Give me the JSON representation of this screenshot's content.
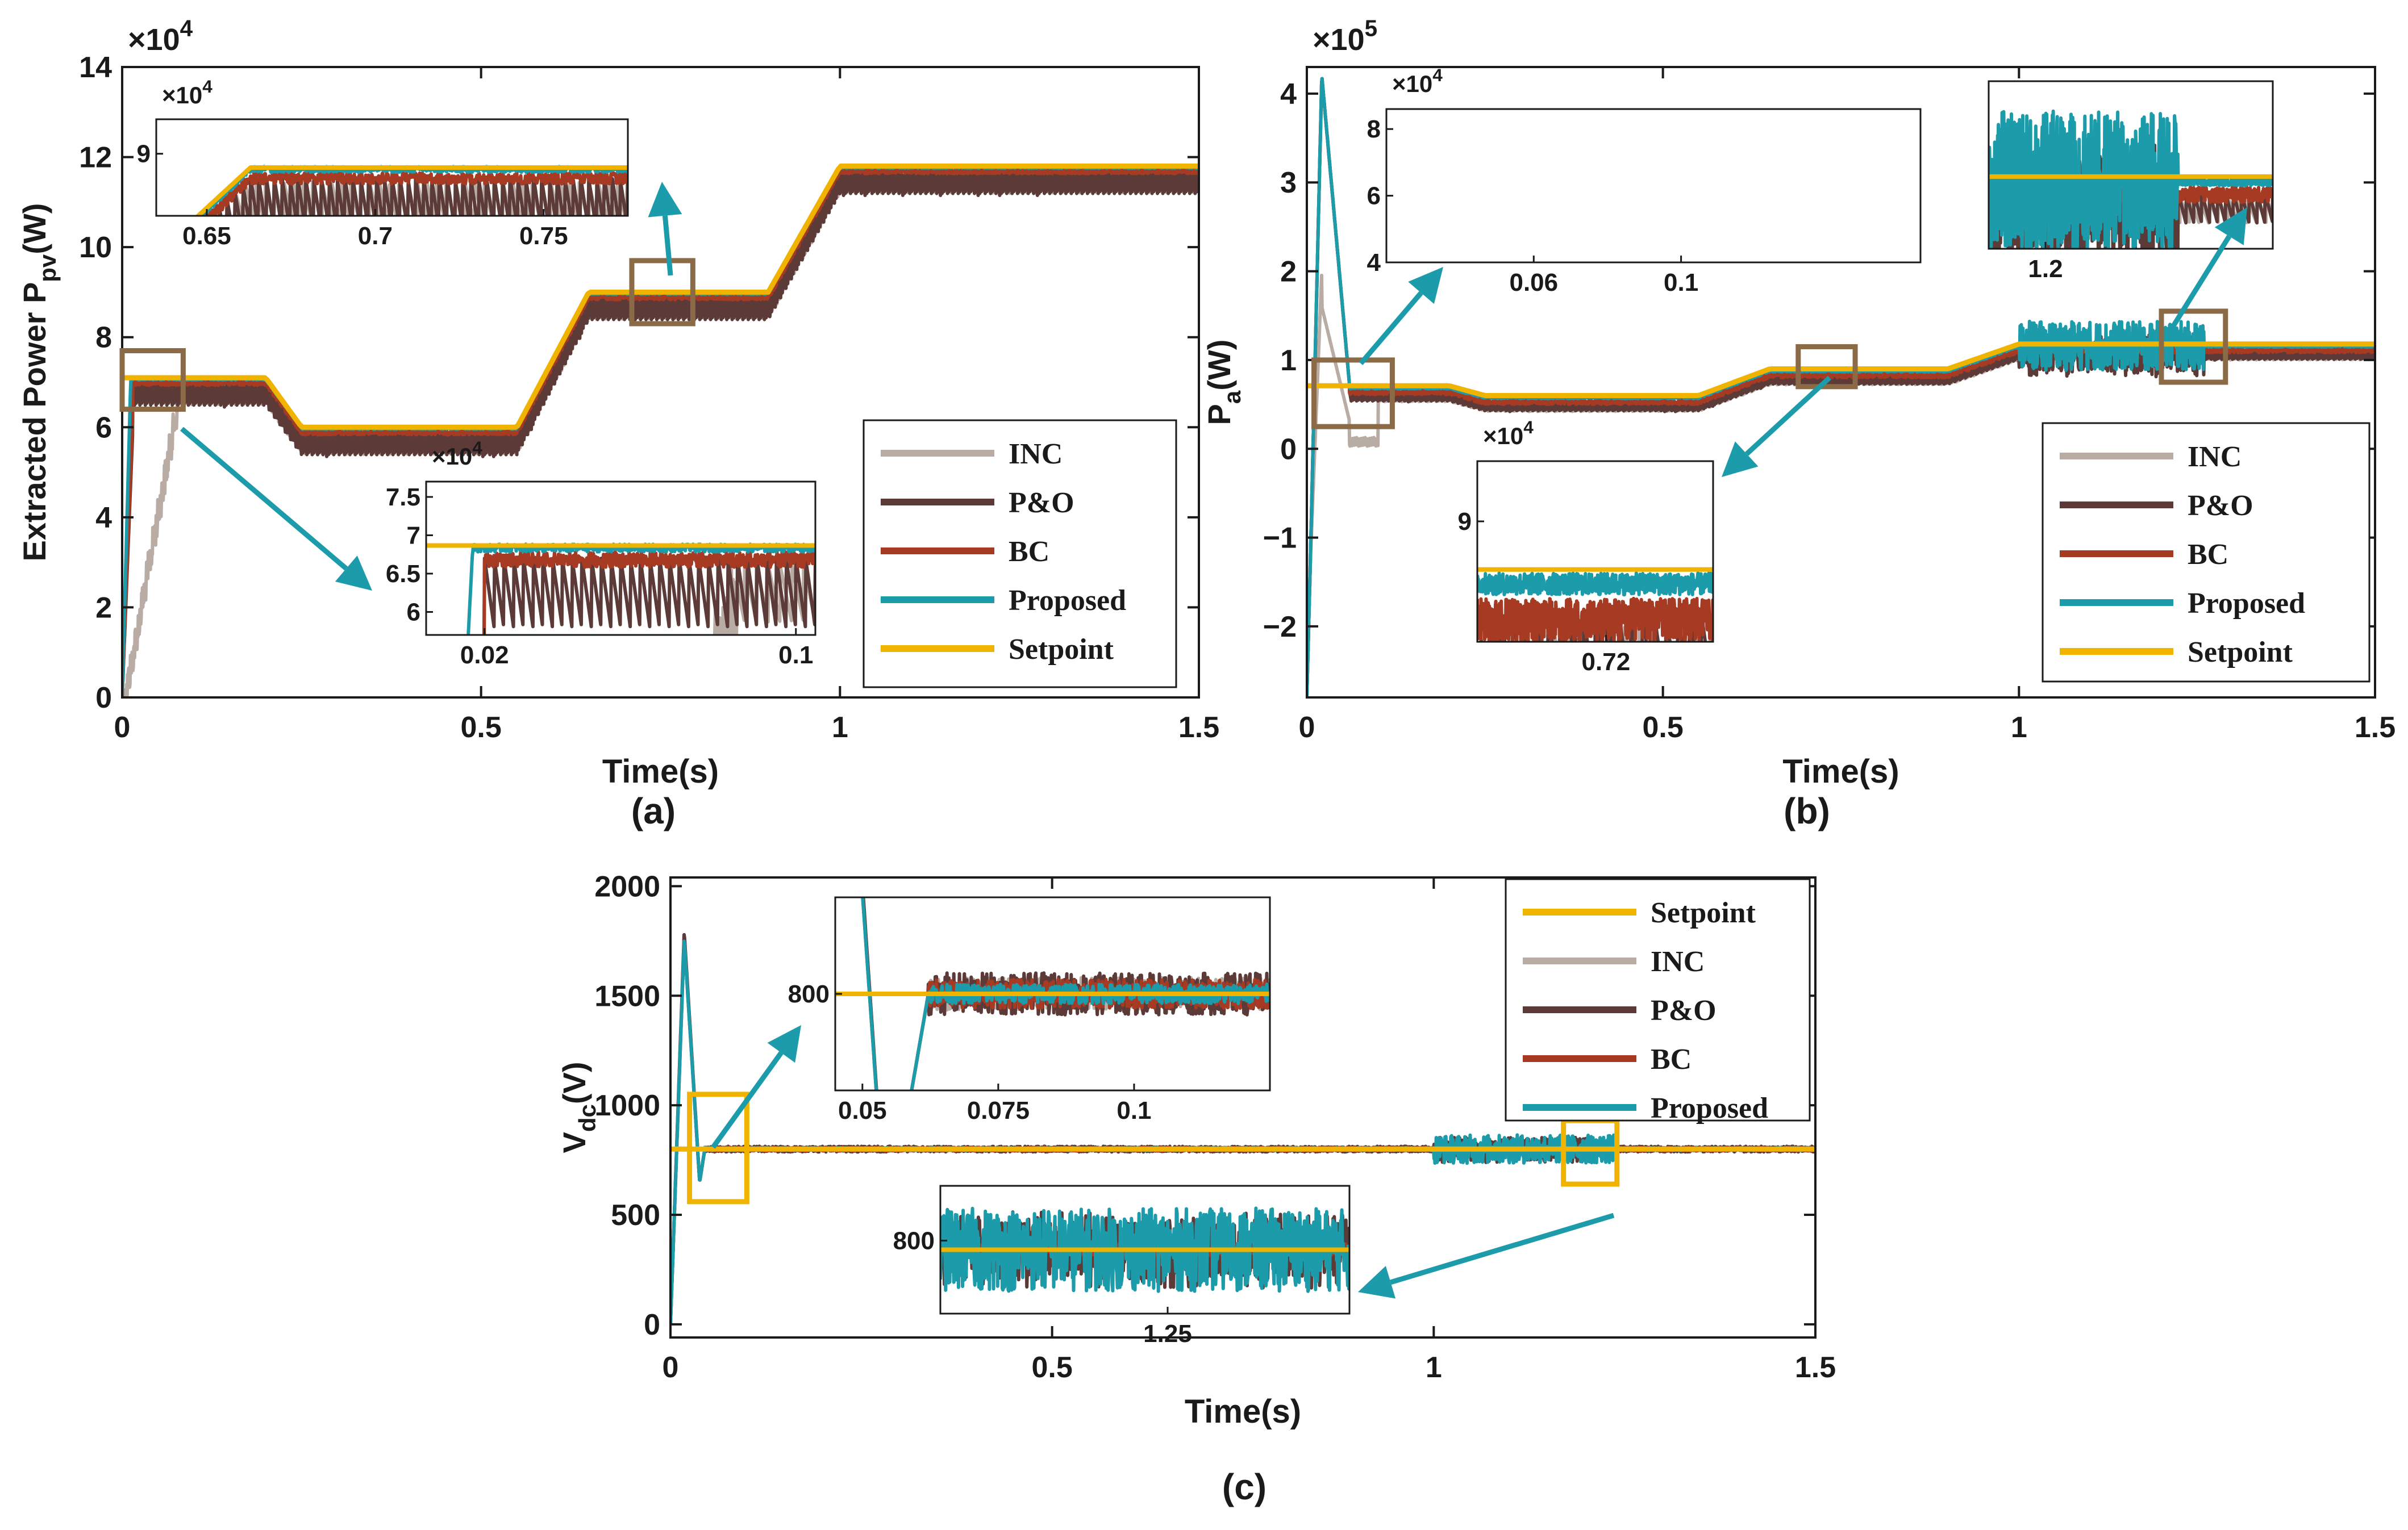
{
  "colors": {
    "INC": "#b8aca4",
    "P&O": "#5b3a38",
    "BC": "#a63a22",
    "Proposed": "#1c9caa",
    "Setpoint": "#f0b400",
    "zoom_box": "#8b6a48",
    "zoom_box_c": "#f0b400",
    "arrow": "#1c9caa",
    "axis": "#1a1a1a"
  },
  "chart_data": [
    {
      "id": "a",
      "type": "line",
      "panel_label": "(a)",
      "xlabel": "Time(s)",
      "ylabel": "Extracted Power P",
      "ylabel_sub": "pv",
      "ylabel_unit": "(W)",
      "exponent": "×10",
      "exponent_power": "4",
      "xlim": [
        0,
        1.5
      ],
      "ylim": [
        0,
        14
      ],
      "xticks": [
        0,
        0.5,
        1,
        1.5
      ],
      "xtick_labels": [
        "0",
        "0.5",
        "1",
        "1.5"
      ],
      "yticks": [
        0,
        2,
        4,
        6,
        8,
        10,
        12,
        14
      ],
      "ytick_labels": [
        "0",
        "2",
        "4",
        "6",
        "8",
        "10",
        "12",
        "14"
      ],
      "legend_placement": "bottom-right",
      "legend": [
        "INC",
        "P&O",
        "BC",
        "Proposed",
        "Setpoint"
      ],
      "setpoint_profile": {
        "t": [
          0,
          0.2,
          0.25,
          0.55,
          0.65,
          0.9,
          1.0,
          1.5
        ],
        "value": [
          7.1,
          7.1,
          6.0,
          6.0,
          9.0,
          9.0,
          11.8,
          11.8
        ]
      },
      "series": [
        {
          "name": "INC",
          "note": "slow start then ripples below setpoint"
        },
        {
          "name": "P&O",
          "note": "oscillates below setpoint"
        },
        {
          "name": "BC"
        },
        {
          "name": "Proposed"
        },
        {
          "name": "Setpoint"
        }
      ],
      "insets": [
        {
          "xlim": [
            0.635,
            0.775
          ],
          "ylim": [
            8.55,
            9.25
          ],
          "xtick_labels": [
            "0.65",
            "0.7",
            "0.75"
          ],
          "xticks": [
            0.65,
            0.7,
            0.75
          ],
          "ytick_labels": [
            "9"
          ],
          "yticks": [
            9
          ],
          "exponent": "×10",
          "exponent_power": "4"
        },
        {
          "xlim": [
            0.005,
            0.105
          ],
          "ylim": [
            5.7,
            7.7
          ],
          "xtick_labels": [
            "0.02",
            "0.1"
          ],
          "xticks": [
            0.02,
            0.1
          ],
          "ytick_labels": [
            "6",
            "6.5",
            "7",
            "7.5"
          ],
          "yticks": [
            6,
            6.5,
            7,
            7.5
          ],
          "exponent": "×10",
          "exponent_power": "4"
        }
      ]
    },
    {
      "id": "b",
      "type": "line",
      "panel_label": "(b)",
      "xlabel": "Time(s)",
      "ylabel": "P",
      "ylabel_sub": "a",
      "ylabel_unit": "(W)",
      "exponent": "×10",
      "exponent_power": "5",
      "xlim": [
        0,
        1.5
      ],
      "ylim": [
        -2.8,
        4.3
      ],
      "xticks": [
        0,
        0.5,
        1,
        1.5
      ],
      "xtick_labels": [
        "0",
        "0.5",
        "1",
        "1.5"
      ],
      "yticks": [
        -2,
        -1,
        0,
        1,
        2,
        3,
        4
      ],
      "ytick_labels": [
        "−2",
        "−1",
        "0",
        "1",
        "2",
        "3",
        "4"
      ],
      "legend_placement": "bottom-right",
      "legend": [
        "INC",
        "P&O",
        "BC",
        "Proposed",
        "Setpoint"
      ],
      "setpoint_profile": {
        "t": [
          0,
          0.2,
          0.25,
          0.55,
          0.65,
          0.9,
          1.0,
          1.5
        ],
        "value": [
          0.71,
          0.71,
          0.6,
          0.6,
          0.9,
          0.9,
          1.18,
          1.18
        ]
      },
      "insets": [
        {
          "xlim": [
            0.02,
            0.165
          ],
          "ylim": [
            4,
            8.6
          ],
          "xtick_labels": [
            "0.06",
            "0.1"
          ],
          "xticks": [
            0.06,
            0.1
          ],
          "ytick_labels": [
            "4",
            "6",
            "8"
          ],
          "yticks": [
            4,
            6,
            8
          ],
          "exponent": "×10",
          "exponent_power": "4"
        },
        {
          "xlim": [
            1.18,
            1.28
          ],
          "ylim": [
            0,
            1
          ],
          "xtick_labels": [
            "1.2"
          ],
          "xticks": [
            1.2
          ],
          "ytick_labels": [],
          "yticks": []
        },
        {
          "xlim": [
            0.69,
            0.745
          ],
          "ylim": [
            8.2,
            9.4
          ],
          "xtick_labels": [
            "0.72"
          ],
          "xticks": [
            0.72
          ],
          "ytick_labels": [
            "9"
          ],
          "yticks": [
            9
          ],
          "exponent": "×10",
          "exponent_power": "4"
        }
      ]
    },
    {
      "id": "c",
      "type": "line",
      "panel_label": "(c)",
      "xlabel": "Time(s)",
      "ylabel": "V",
      "ylabel_sub": "dc",
      "ylabel_unit": "(V)",
      "xlim": [
        0,
        1.5
      ],
      "ylim": [
        -60,
        2040
      ],
      "xticks": [
        0,
        0.5,
        1,
        1.5
      ],
      "xtick_labels": [
        "0",
        "0.5",
        "1",
        "1.5"
      ],
      "yticks": [
        0,
        500,
        1000,
        1500,
        2000
      ],
      "ytick_labels": [
        "0",
        "500",
        "1000",
        "1500",
        "2000"
      ],
      "legend_placement": "top-right",
      "legend": [
        "Setpoint",
        "INC",
        "P&O",
        "BC",
        "Proposed"
      ],
      "setpoint_profile": {
        "t": [
          0,
          1.5
        ],
        "value": [
          800,
          800
        ]
      },
      "insets": [
        {
          "xlim": [
            0.045,
            0.125
          ],
          "ylim": [
            720,
            880
          ],
          "xtick_labels": [
            "0.05",
            "0.075",
            "0.1"
          ],
          "xticks": [
            0.05,
            0.075,
            0.1
          ],
          "ytick_labels": [
            "800"
          ],
          "yticks": [
            800
          ]
        },
        {
          "xlim": [
            1.2,
            1.29
          ],
          "ylim": [
            760,
            830
          ],
          "xtick_labels": [
            "1.25"
          ],
          "xticks": [
            1.25
          ],
          "ytick_labels": [
            "800"
          ],
          "yticks": [
            800
          ]
        }
      ]
    }
  ]
}
